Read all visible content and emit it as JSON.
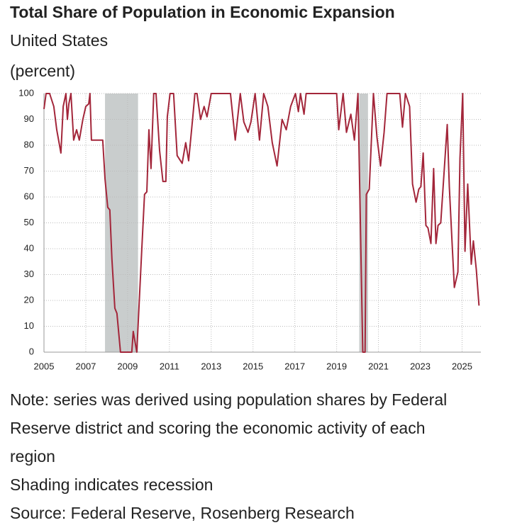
{
  "chart_data": {
    "type": "line",
    "title": "Total Share of Population in Economic Expansion",
    "subtitle": "United States",
    "unit_label": "(percent)",
    "notes": [
      "Note: series was derived using population shares by Federal Reserve district and scoring the economic activity of each region",
      "Shading indicates recession",
      "Source: Federal Reserve, Rosenberg Research"
    ],
    "color": "#a3263a",
    "recession_color": "#c9cdcd",
    "grid": true,
    "recessions": [
      {
        "start": 2007.92,
        "end": 2009.5
      },
      {
        "start": 2020.08,
        "end": 2020.5
      }
    ],
    "x": [
      2005.0,
      2005.1,
      2005.27,
      2005.47,
      2005.61,
      2005.81,
      2005.92,
      2006.05,
      2006.12,
      2006.19,
      2006.29,
      2006.42,
      2006.56,
      2006.69,
      2006.86,
      2007.0,
      2007.14,
      2007.2,
      2007.27,
      2007.81,
      2007.92,
      2008.05,
      2008.15,
      2008.25,
      2008.39,
      2008.49,
      2008.66,
      2008.86,
      2009.2,
      2009.27,
      2009.44,
      2009.68,
      2009.81,
      2009.92,
      2010.02,
      2010.12,
      2010.25,
      2010.36,
      2010.53,
      2010.69,
      2010.83,
      2010.9,
      2011.03,
      2011.2,
      2011.37,
      2011.61,
      2011.78,
      2011.92,
      2012.12,
      2012.22,
      2012.32,
      2012.49,
      2012.66,
      2012.8,
      2013.0,
      2013.92,
      2014.15,
      2014.39,
      2014.56,
      2014.76,
      2014.9,
      2015.1,
      2015.31,
      2015.51,
      2015.71,
      2015.92,
      2016.15,
      2016.39,
      2016.59,
      2016.8,
      2017.03,
      2017.17,
      2017.27,
      2017.44,
      2017.54,
      2019.0,
      2019.1,
      2019.31,
      2019.47,
      2019.68,
      2019.85,
      2020.02,
      2020.25,
      2020.36,
      2020.42,
      2020.56,
      2020.76,
      2020.93,
      2021.1,
      2021.27,
      2021.41,
      2022.02,
      2022.15,
      2022.29,
      2022.49,
      2022.63,
      2022.8,
      2022.93,
      2023.03,
      2023.14,
      2023.27,
      2023.37,
      2023.51,
      2023.64,
      2023.75,
      2023.85,
      2023.98,
      2024.29,
      2024.39,
      2024.53,
      2024.63,
      2024.8,
      2024.9,
      2025.03,
      2025.14,
      2025.27,
      2025.44,
      2025.54,
      2025.68,
      2025.81
    ],
    "values": [
      94,
      100,
      100,
      95,
      86,
      77,
      95,
      100,
      90,
      96,
      100,
      82,
      86,
      82,
      90,
      95,
      96,
      100,
      82,
      82,
      67,
      56,
      55,
      36,
      17,
      15,
      0,
      0,
      0,
      8,
      0,
      40,
      61,
      62,
      86,
      71,
      100,
      100,
      78,
      66,
      66,
      91,
      100,
      100,
      76,
      73,
      81,
      74,
      91,
      100,
      100,
      90,
      95,
      91,
      100,
      100,
      82,
      100,
      89,
      85,
      89,
      100,
      82,
      100,
      95,
      81,
      72,
      90,
      86,
      95,
      100,
      93,
      100,
      92,
      100,
      100,
      86,
      100,
      85,
      92,
      82,
      100,
      0,
      0,
      61,
      63,
      100,
      83,
      72,
      85,
      100,
      100,
      87,
      100,
      95,
      65,
      58,
      63,
      64,
      77,
      49,
      48,
      42,
      71,
      42,
      49,
      50,
      88,
      64,
      41,
      25,
      31,
      75,
      100,
      39,
      65,
      34,
      43,
      32,
      18
    ],
    "xlim": [
      2005,
      2025.9
    ],
    "ylim": [
      0,
      100
    ],
    "xticks": [
      2005,
      2007,
      2009,
      2011,
      2013,
      2015,
      2017,
      2019,
      2021,
      2023,
      2025
    ],
    "yticks": [
      0,
      10,
      20,
      30,
      40,
      50,
      60,
      70,
      80,
      90,
      100
    ]
  }
}
